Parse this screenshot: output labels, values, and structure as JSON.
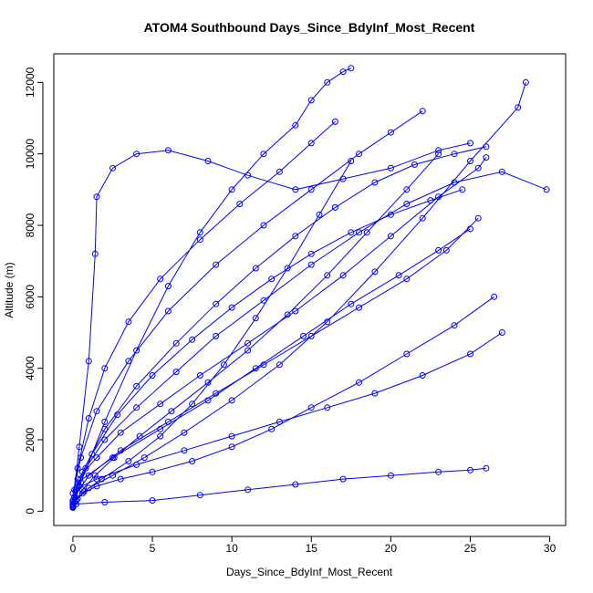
{
  "chart_data": {
    "type": "line",
    "title": "ATOM4 Southbound Days_Since_BdyInf_Most_Recent",
    "xlabel": "Days_Since_BdyInf_Most_Recent",
    "ylabel": "Altitude (m)",
    "xlim": [
      -1.2,
      31.0
    ],
    "ylim": [
      -400,
      12800
    ],
    "xticks": [
      0,
      5,
      10,
      15,
      20,
      25,
      30
    ],
    "yticks": [
      0,
      2000,
      4000,
      6000,
      8000,
      10000,
      12000
    ],
    "marker": "open-circle",
    "grid": false,
    "legend": "none",
    "series_color": "#0000ff",
    "series": [
      {
        "x": [
          0.0,
          0.1,
          0.3,
          1.5,
          3.0,
          5.5,
          8.0,
          11.0,
          14.0,
          17.0,
          20.0,
          23.0,
          25.5,
          26.0
        ],
        "y": [
          150,
          400,
          900,
          1500,
          2200,
          3000,
          3800,
          4700,
          5600,
          6600,
          7700,
          8800,
          9600,
          9900
        ]
      },
      {
        "x": [
          0.0,
          0.2,
          0.8,
          2.0,
          4.0,
          6.5,
          9.0,
          12.0,
          15.0,
          18.0,
          21.0,
          24.0,
          27.0,
          29.8
        ],
        "y": [
          200,
          600,
          1200,
          2000,
          2900,
          3900,
          4900,
          5900,
          6900,
          7800,
          8600,
          9200,
          9500,
          9000
        ]
      },
      {
        "x": [
          0.0,
          0.4,
          1.0,
          1.4,
          1.5,
          2.5,
          4.0,
          6.0,
          8.5,
          11.0,
          14.0,
          17.0,
          20.0,
          23.0,
          25.0
        ],
        "y": [
          300,
          1800,
          4200,
          7200,
          8800,
          9600,
          10000,
          10100,
          9800,
          9400,
          9000,
          9300,
          9600,
          10100,
          10300
        ]
      },
      {
        "x": [
          0.0,
          0.5,
          2.0,
          4.0,
          6.0,
          8.0,
          10.0,
          12.0,
          14.0,
          15.0,
          16.0,
          17.0,
          17.5
        ],
        "y": [
          100,
          800,
          2500,
          4500,
          6300,
          7800,
          9000,
          10000,
          10800,
          11500,
          12000,
          12300,
          12400
        ]
      },
      {
        "x": [
          0.1,
          0.6,
          1.5,
          3.0,
          5.0,
          7.5,
          10.0,
          12.5,
          15.0,
          18.0,
          21.0,
          24.0,
          26.5
        ],
        "y": [
          250,
          500,
          700,
          900,
          1100,
          1400,
          1800,
          2300,
          2900,
          3600,
          4400,
          5200,
          6000
        ]
      },
      {
        "x": [
          0.0,
          0.3,
          1.0,
          2.5,
          4.5,
          7.0,
          10.0,
          13.0,
          16.0,
          19.0,
          22.0,
          25.0,
          28.0,
          28.5
        ],
        "y": [
          120,
          350,
          650,
          1000,
          1500,
          2200,
          3100,
          4100,
          5300,
          6700,
          8200,
          9800,
          11300,
          12000
        ]
      },
      {
        "x": [
          0.0,
          0.2,
          0.7,
          1.8,
          3.5,
          5.5,
          7.5,
          9.5,
          11.5,
          13.5,
          15.5,
          17.5
        ],
        "y": [
          180,
          300,
          550,
          900,
          1400,
          2100,
          3000,
          4100,
          5400,
          6800,
          8300,
          9800
        ]
      },
      {
        "x": [
          0.1,
          1.0,
          3.0,
          6.0,
          9.0,
          12.0,
          15.0,
          18.0,
          21.0,
          23.5,
          25.5
        ],
        "y": [
          400,
          1000,
          1700,
          2500,
          3300,
          4100,
          4900,
          5700,
          6500,
          7300,
          8200
        ]
      },
      {
        "x": [
          0.0,
          0.5,
          1.5,
          3.5,
          6.0,
          9.0,
          12.0,
          15.0,
          18.0,
          20.0,
          22.0
        ],
        "y": [
          500,
          1500,
          2800,
          4200,
          5600,
          6900,
          8000,
          9000,
          10000,
          10600,
          11200
        ]
      },
      {
        "x": [
          0.2,
          2.0,
          5.0,
          8.0,
          11.0,
          14.0,
          17.0,
          20.0,
          23.0,
          25.0,
          26.0
        ],
        "y": [
          200,
          250,
          300,
          450,
          600,
          750,
          900,
          1000,
          1100,
          1150,
          1200
        ]
      },
      {
        "x": [
          0.0,
          0.4,
          1.2,
          2.8,
          5.0,
          7.5,
          10.0,
          12.5,
          15.0,
          17.5,
          20.0,
          22.5,
          24.5
        ],
        "y": [
          150,
          700,
          1600,
          2700,
          3800,
          4800,
          5700,
          6500,
          7200,
          7800,
          8300,
          8700,
          9000
        ]
      },
      {
        "x": [
          0.0,
          0.3,
          1.0,
          2.0,
          3.5,
          5.5,
          8.0,
          10.5,
          13.0,
          15.0,
          16.5
        ],
        "y": [
          300,
          1200,
          2600,
          4000,
          5300,
          6500,
          7600,
          8600,
          9500,
          10300,
          10900
        ]
      },
      {
        "x": [
          0.1,
          1.5,
          4.0,
          7.0,
          10.0,
          13.0,
          16.0,
          19.0,
          22.0,
          25.0,
          27.0
        ],
        "y": [
          600,
          900,
          1300,
          1700,
          2100,
          2500,
          2900,
          3300,
          3800,
          4400,
          5000
        ]
      },
      {
        "x": [
          0.0,
          0.6,
          2.0,
          4.0,
          6.5,
          9.0,
          11.5,
          14.0,
          16.5,
          19.0,
          21.5,
          24.0,
          26.0
        ],
        "y": [
          250,
          1100,
          2300,
          3500,
          4700,
          5800,
          6800,
          7700,
          8500,
          9200,
          9700,
          10000,
          10200
        ]
      },
      {
        "x": [
          0.0,
          0.2,
          0.6,
          1.4,
          2.6,
          4.2,
          6.2,
          8.5,
          11.0,
          13.5,
          16.0,
          18.5,
          21.0,
          23.0
        ],
        "y": [
          100,
          300,
          600,
          1000,
          1500,
          2100,
          2800,
          3600,
          4500,
          5500,
          6600,
          7800,
          9000,
          10000
        ]
      },
      {
        "x": [
          0.3,
          2.5,
          5.5,
          8.5,
          11.5,
          14.5,
          17.5,
          20.5,
          23.0,
          25.0
        ],
        "y": [
          800,
          1500,
          2300,
          3100,
          4000,
          4900,
          5800,
          6600,
          7300,
          7900
        ]
      }
    ]
  }
}
